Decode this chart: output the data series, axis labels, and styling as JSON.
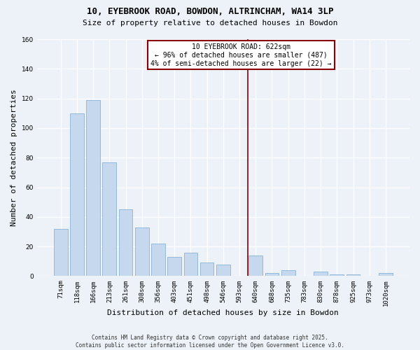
{
  "title1": "10, EYEBROOK ROAD, BOWDON, ALTRINCHAM, WA14 3LP",
  "title2": "Size of property relative to detached houses in Bowdon",
  "xlabel": "Distribution of detached houses by size in Bowdon",
  "ylabel": "Number of detached properties",
  "bar_color": "#c5d8ee",
  "bar_edge_color": "#7aaad0",
  "categories": [
    "71sqm",
    "118sqm",
    "166sqm",
    "213sqm",
    "261sqm",
    "308sqm",
    "356sqm",
    "403sqm",
    "451sqm",
    "498sqm",
    "546sqm",
    "593sqm",
    "640sqm",
    "688sqm",
    "735sqm",
    "783sqm",
    "830sqm",
    "878sqm",
    "925sqm",
    "973sqm",
    "1020sqm"
  ],
  "values": [
    32,
    110,
    119,
    77,
    45,
    33,
    22,
    13,
    16,
    9,
    8,
    0,
    14,
    2,
    4,
    0,
    3,
    1,
    1,
    0,
    2
  ],
  "marker_index": 11.5,
  "marker_color": "#8b0000",
  "annotation_lines": [
    "10 EYEBROOK ROAD: 622sqm",
    "← 96% of detached houses are smaller (487)",
    "4% of semi-detached houses are larger (22) →"
  ],
  "ylim": [
    0,
    160
  ],
  "yticks": [
    0,
    20,
    40,
    60,
    80,
    100,
    120,
    140,
    160
  ],
  "footer": "Contains HM Land Registry data © Crown copyright and database right 2025.\nContains public sector information licensed under the Open Government Licence v3.0.",
  "bg_color": "#edf1f8",
  "grid_color": "#ffffff",
  "title_fontsize": 9,
  "subtitle_fontsize": 8,
  "tick_fontsize": 6.5,
  "ylabel_fontsize": 8,
  "xlabel_fontsize": 8,
  "footer_fontsize": 5.5,
  "annot_fontsize": 7
}
